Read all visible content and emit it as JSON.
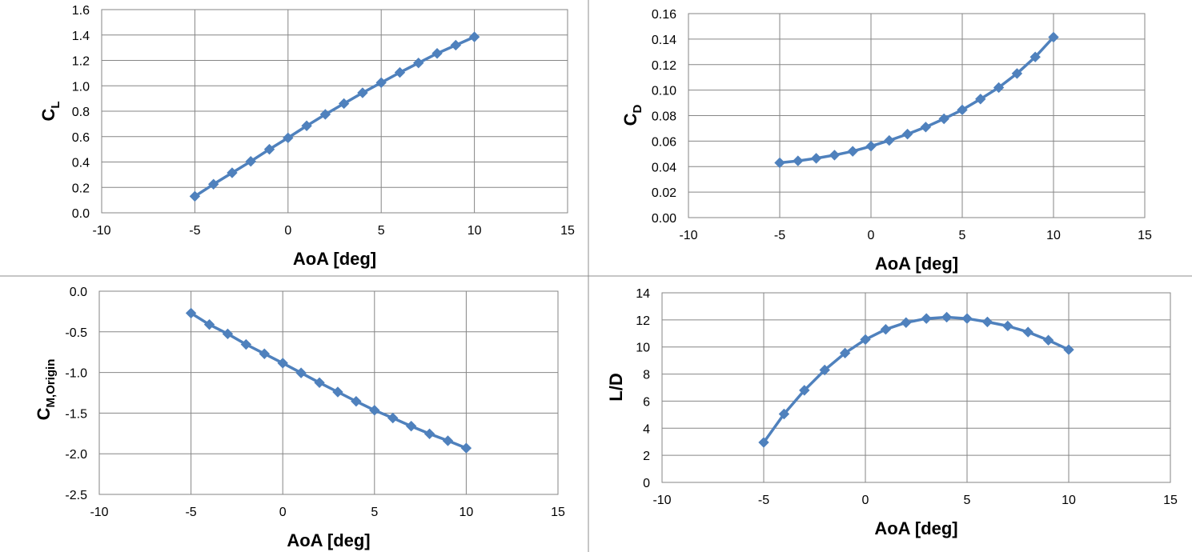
{
  "colors": {
    "series": "#4F81BD",
    "grid": "#868686",
    "divider": "#8c8c8c"
  },
  "chart_data": [
    {
      "type": "line",
      "xlabel": "AoA [deg]",
      "ylabel_main": "C",
      "ylabel_sub": "L",
      "xlim": [
        -10,
        15
      ],
      "ylim": [
        0,
        1.6
      ],
      "xticks": [
        "-10",
        "-5",
        "0",
        "5",
        "10",
        "15"
      ],
      "yticks": [
        "0.0",
        "0.2",
        "0.4",
        "0.6",
        "0.8",
        "1.0",
        "1.2",
        "1.4",
        "1.6"
      ],
      "grid": true,
      "marker": "diamond",
      "x": [
        -5,
        -4,
        -3,
        -2,
        -1,
        0,
        1,
        2,
        3,
        4,
        5,
        6,
        7,
        8,
        9,
        10
      ],
      "y": [
        0.13,
        0.225,
        0.315,
        0.405,
        0.5,
        0.59,
        0.685,
        0.775,
        0.86,
        0.945,
        1.025,
        1.105,
        1.18,
        1.255,
        1.32,
        1.385
      ]
    },
    {
      "type": "line",
      "xlabel": "AoA [deg]",
      "ylabel_main": "C",
      "ylabel_sub": "D",
      "xlim": [
        -10,
        15
      ],
      "ylim": [
        0,
        0.16
      ],
      "xticks": [
        "-10",
        "-5",
        "0",
        "5",
        "10",
        "15"
      ],
      "yticks": [
        "0.00",
        "0.02",
        "0.04",
        "0.06",
        "0.08",
        "0.10",
        "0.12",
        "0.14",
        "0.16"
      ],
      "grid": true,
      "marker": "diamond",
      "x": [
        -5,
        -4,
        -3,
        -2,
        -1,
        0,
        1,
        2,
        3,
        4,
        5,
        6,
        7,
        8,
        9,
        10
      ],
      "y": [
        0.043,
        0.0445,
        0.0465,
        0.049,
        0.052,
        0.056,
        0.0605,
        0.0655,
        0.071,
        0.0775,
        0.0845,
        0.093,
        0.102,
        0.113,
        0.126,
        0.1415
      ]
    },
    {
      "type": "line",
      "xlabel": "AoA [deg]",
      "ylabel_main": "C",
      "ylabel_sub": "M,Origin",
      "xlim": [
        -10,
        15
      ],
      "ylim": [
        -2.5,
        0
      ],
      "xticks": [
        "-10",
        "-5",
        "0",
        "5",
        "10",
        "15"
      ],
      "yticks": [
        "0.0",
        "-0.5",
        "-1.0",
        "-1.5",
        "-2.0",
        "-2.5"
      ],
      "grid": true,
      "marker": "diamond",
      "x": [
        -5,
        -4,
        -3,
        -2,
        -1,
        0,
        1,
        2,
        3,
        4,
        5,
        6,
        7,
        8,
        9,
        10
      ],
      "y": [
        -0.27,
        -0.41,
        -0.525,
        -0.655,
        -0.77,
        -0.885,
        -1.005,
        -1.125,
        -1.24,
        -1.355,
        -1.465,
        -1.56,
        -1.66,
        -1.755,
        -1.84,
        -1.93
      ]
    },
    {
      "type": "line",
      "xlabel": "AoA [deg]",
      "ylabel_main": "L/D",
      "ylabel_sub": "",
      "xlim": [
        -10,
        15
      ],
      "ylim": [
        0,
        14
      ],
      "xticks": [
        "-10",
        "-5",
        "0",
        "5",
        "10",
        "15"
      ],
      "yticks": [
        "0",
        "2",
        "4",
        "6",
        "8",
        "10",
        "12",
        "14"
      ],
      "grid": true,
      "marker": "diamond",
      "x": [
        -5,
        -4,
        -3,
        -2,
        -1,
        0,
        1,
        2,
        3,
        4,
        5,
        6,
        7,
        8,
        9,
        10
      ],
      "y": [
        2.95,
        5.05,
        6.8,
        8.3,
        9.55,
        10.55,
        11.3,
        11.8,
        12.1,
        12.2,
        12.1,
        11.85,
        11.55,
        11.1,
        10.5,
        9.8
      ]
    }
  ]
}
